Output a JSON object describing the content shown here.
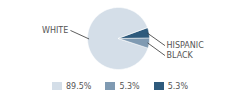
{
  "chart_data": {
    "type": "pie",
    "categories": [
      "WHITE",
      "BLACK",
      "HISPANIC"
    ],
    "values": [
      89.5,
      5.3,
      5.3
    ],
    "value_labels": [
      "89.5%",
      "5.3%",
      "5.3%"
    ],
    "colors": [
      "#d4dee8",
      "#7f9ab2",
      "#2e5a7c"
    ],
    "legend": "bottom"
  }
}
